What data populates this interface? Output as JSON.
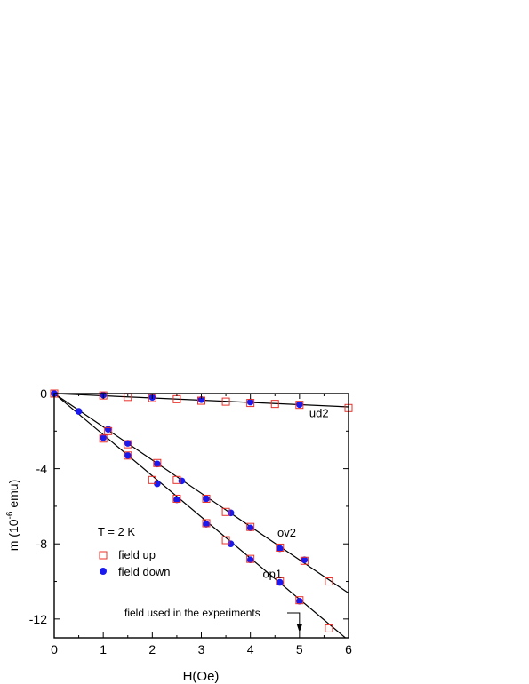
{
  "chart_data": {
    "type": "scatter",
    "xlabel": "H(Oe)",
    "ylabel_main": "m (10",
    "ylabel_exp": "-6",
    "ylabel_tail": " emu)",
    "xlim": [
      0,
      6
    ],
    "ylim": [
      -13,
      0
    ],
    "xticks": [
      0,
      1,
      2,
      3,
      4,
      5,
      6
    ],
    "yticks": [
      0,
      -4,
      -8,
      -12
    ],
    "grid": false,
    "legend_position": "left-middle",
    "annotation_temperature": "T = 2 K",
    "annotation_arrow": "field used in the experiments",
    "arrow_x": 5,
    "colors": {
      "field_up": "#e8302a",
      "field_down": "#1a1aee",
      "fit_line": "#000000"
    },
    "series": [
      {
        "name": "field up",
        "marker": "open-square",
        "points": [
          [
            0,
            0
          ],
          [
            1,
            -0.1
          ],
          [
            1.5,
            -0.18
          ],
          [
            2,
            -0.24
          ],
          [
            2.5,
            -0.3
          ],
          [
            3,
            -0.38
          ],
          [
            3.5,
            -0.43
          ],
          [
            4,
            -0.5
          ],
          [
            4.5,
            -0.55
          ],
          [
            5,
            -0.6
          ],
          [
            6,
            -0.77
          ],
          [
            1.1,
            -2.0
          ],
          [
            1.5,
            -2.7
          ],
          [
            2.1,
            -3.7
          ],
          [
            2.5,
            -4.6
          ],
          [
            3.1,
            -5.6
          ],
          [
            3.5,
            -6.3
          ],
          [
            4.0,
            -7.1
          ],
          [
            4.6,
            -8.2
          ],
          [
            5.1,
            -8.9
          ],
          [
            5.6,
            -10.0
          ],
          [
            1.0,
            -2.4
          ],
          [
            1.5,
            -3.3
          ],
          [
            2.0,
            -4.6
          ],
          [
            2.5,
            -5.6
          ],
          [
            3.1,
            -6.9
          ],
          [
            3.5,
            -7.8
          ],
          [
            4.0,
            -8.8
          ],
          [
            4.6,
            -10.0
          ],
          [
            5.0,
            -11.0
          ],
          [
            5.6,
            -12.5
          ]
        ]
      },
      {
        "name": "field down",
        "marker": "filled-circle",
        "points": [
          [
            0,
            0
          ],
          [
            1,
            -0.08
          ],
          [
            2,
            -0.2
          ],
          [
            3,
            -0.32
          ],
          [
            4,
            -0.45
          ],
          [
            5,
            -0.58
          ],
          [
            0.5,
            -0.95
          ],
          [
            1.1,
            -1.9
          ],
          [
            1.5,
            -2.65
          ],
          [
            2.1,
            -3.75
          ],
          [
            2.6,
            -4.65
          ],
          [
            3.1,
            -5.6
          ],
          [
            3.6,
            -6.35
          ],
          [
            4.0,
            -7.15
          ],
          [
            4.6,
            -8.25
          ],
          [
            5.1,
            -8.85
          ],
          [
            1.0,
            -2.35
          ],
          [
            1.5,
            -3.3
          ],
          [
            2.1,
            -4.8
          ],
          [
            2.5,
            -5.65
          ],
          [
            3.1,
            -6.95
          ],
          [
            3.6,
            -8.0
          ],
          [
            4.0,
            -8.85
          ],
          [
            4.6,
            -10.05
          ],
          [
            5.0,
            -11.05
          ]
        ]
      }
    ],
    "fit_lines": [
      {
        "label": "ud2",
        "slope": -0.118,
        "label_x": 5.2,
        "label_y": -1.25
      },
      {
        "label": "ov2",
        "slope": -1.77,
        "label_x": 4.55,
        "label_y": -7.6
      },
      {
        "label": "op1",
        "slope": -2.19,
        "label_x": 4.25,
        "label_y": -9.8
      }
    ]
  }
}
